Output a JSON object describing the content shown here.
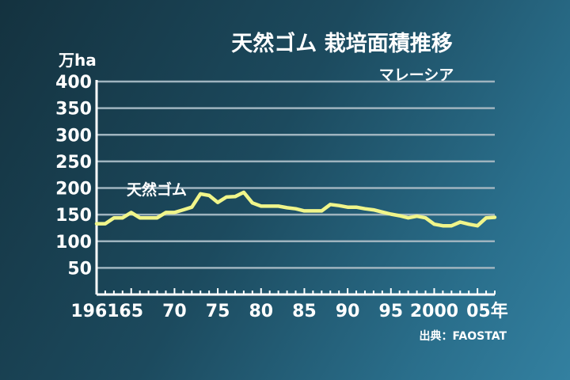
{
  "chart_data": {
    "type": "line",
    "title": "天然ゴム 栽培面積推移",
    "subtitle": "マレーシア",
    "ylabel": "万ha",
    "source": "出典：FAOSTAT",
    "ylim": [
      0,
      400
    ],
    "yticks": [
      50,
      100,
      150,
      200,
      250,
      300,
      350,
      400
    ],
    "xlim": [
      1961,
      2007
    ],
    "xticks": [
      {
        "value": 1961,
        "label": "1961"
      },
      {
        "value": 1965,
        "label": "65"
      },
      {
        "value": 1970,
        "label": "70"
      },
      {
        "value": 1975,
        "label": "75"
      },
      {
        "value": 1980,
        "label": "80"
      },
      {
        "value": 1985,
        "label": "85"
      },
      {
        "value": 1990,
        "label": "90"
      },
      {
        "value": 1995,
        "label": "95"
      },
      {
        "value": 2000,
        "label": "2000"
      },
      {
        "value": 2005,
        "label": "05年"
      }
    ],
    "grid": true,
    "line_color": "#f0f58a",
    "series": [
      {
        "name": "天然ゴム",
        "x": [
          1961,
          1962,
          1963,
          1964,
          1965,
          1966,
          1967,
          1968,
          1969,
          1970,
          1971,
          1972,
          1973,
          1974,
          1975,
          1976,
          1977,
          1978,
          1979,
          1980,
          1981,
          1982,
          1983,
          1984,
          1985,
          1986,
          1987,
          1988,
          1989,
          1990,
          1991,
          1992,
          1993,
          1994,
          1995,
          1996,
          1997,
          1998,
          1999,
          2000,
          2001,
          2002,
          2003,
          2004,
          2005,
          2006,
          2007
        ],
        "values": [
          133,
          133,
          144,
          144,
          154,
          144,
          144,
          144,
          154,
          154,
          159,
          164,
          189,
          186,
          173,
          183,
          184,
          192,
          172,
          166,
          166,
          166,
          163,
          161,
          157,
          157,
          157,
          169,
          167,
          164,
          164,
          161,
          159,
          155,
          151,
          148,
          144,
          147,
          144,
          132,
          129,
          129,
          136,
          132,
          129,
          144,
          145
        ]
      }
    ]
  }
}
